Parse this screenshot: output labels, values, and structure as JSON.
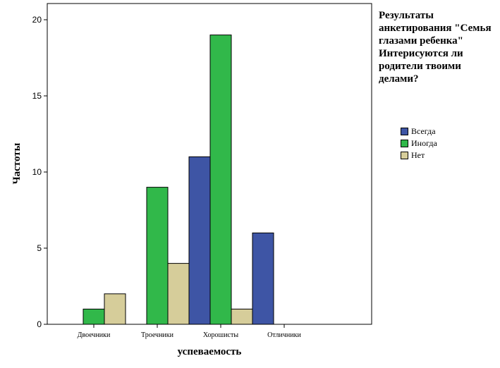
{
  "chart_data": {
    "type": "bar",
    "xlabel": "успеваемость",
    "ylabel": "Частоты",
    "ylim": [
      0,
      21
    ],
    "yticks": [
      0,
      5,
      10,
      15,
      20
    ],
    "categories": [
      "Двоечники",
      "Троечники",
      "Хорошисты",
      "Отличники"
    ],
    "series": [
      {
        "name": "Всегда",
        "color": "#3e55a5",
        "values": [
          0,
          0,
          11,
          6
        ]
      },
      {
        "name": "Иногда",
        "color": "#31b84a",
        "values": [
          1,
          9,
          19,
          0
        ]
      },
      {
        "name": "Нет",
        "color": "#d6cd9a",
        "values": [
          2,
          4,
          1,
          0
        ]
      }
    ],
    "legend_title": "Результаты анкетирования \"Семья глазами ребенка\" Интерисуются ли родители твоими делами?",
    "legend_placement": "right",
    "grid": false
  }
}
